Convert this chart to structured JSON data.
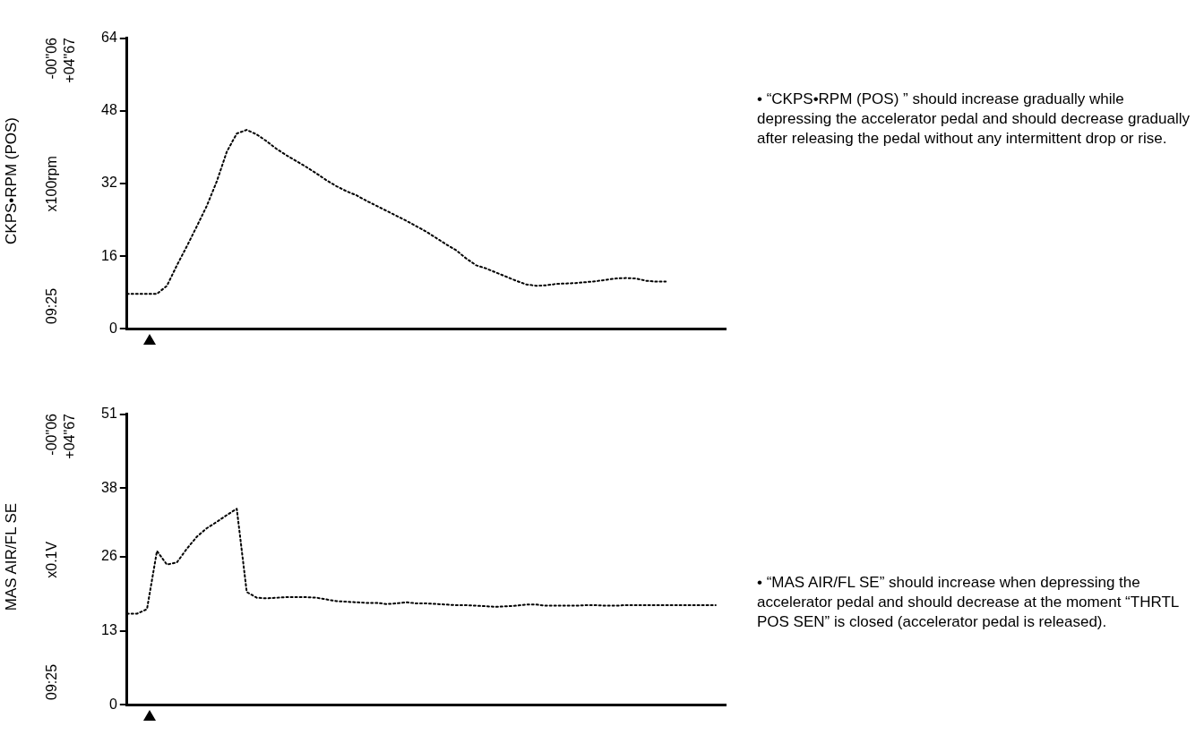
{
  "chart_data": [
    {
      "type": "line",
      "ylabel": "CKPS•RPM (POS)",
      "ylim": [
        0,
        64
      ],
      "yticks": [
        0,
        16,
        32,
        48,
        64
      ],
      "tick_labels": "y",
      "line_style": "dotted",
      "marker": "none",
      "categories": [
        null,
        null,
        null,
        null,
        null,
        null,
        null,
        null,
        null,
        null,
        null,
        null,
        null,
        null,
        null,
        null,
        null,
        null,
        null,
        null,
        null,
        null,
        null,
        null,
        null,
        null,
        null,
        null,
        null,
        null,
        null,
        null,
        null,
        null,
        null,
        null,
        null,
        null,
        null,
        null,
        null,
        null,
        null,
        null,
        null,
        null,
        null,
        null,
        null,
        null,
        null,
        null,
        null,
        null,
        null,
        null,
        null,
        null,
        null,
        null,
        null
      ],
      "series": [
        {
          "color": "#000000",
          "values": [
            7.7,
            7.7,
            7.7,
            7.7,
            9.5,
            14,
            18.2,
            22.6,
            27.1,
            32.5,
            39,
            43,
            43.8,
            42.8,
            41.3,
            39.6,
            38.2,
            36.9,
            35.6,
            34.2,
            32.7,
            31.4,
            30.3,
            29.4,
            28.2,
            27.1,
            26,
            24.9,
            23.8,
            22.6,
            21.4,
            20,
            18.6,
            17.3,
            15.5,
            14,
            13.3,
            12.4,
            11.5,
            10.6,
            9.8,
            9.5,
            9.6,
            9.9,
            10,
            10.1,
            10.3,
            10.5,
            10.8,
            11.1,
            11.2,
            11.1,
            10.6,
            10.4,
            10.4,
            null,
            null,
            null,
            null,
            null,
            null
          ]
        }
      ],
      "annotations": [
        "09:25",
        "-00\"06",
        "+04\"67",
        "x100rpm",
        "• “CKPS•RPM (POS) ” should increase gradually while depressing the accelerator pedal and should decrease gradually after releasing the pedal without any intermittent drop or rise."
      ]
    },
    {
      "type": "line",
      "ylabel": "MAS AIR/FL SE",
      "ylim": [
        0,
        51
      ],
      "yticks": [
        0,
        13,
        26,
        38,
        51
      ],
      "tick_labels": "y",
      "line_style": "dotted",
      "marker": "none",
      "categories": [
        null,
        null,
        null,
        null,
        null,
        null,
        null,
        null,
        null,
        null,
        null,
        null,
        null,
        null,
        null,
        null,
        null,
        null,
        null,
        null,
        null,
        null,
        null,
        null,
        null,
        null,
        null,
        null,
        null,
        null,
        null,
        null,
        null,
        null,
        null,
        null,
        null,
        null,
        null,
        null,
        null,
        null,
        null,
        null,
        null,
        null,
        null,
        null,
        null,
        null,
        null,
        null,
        null,
        null,
        null,
        null,
        null,
        null,
        null,
        null,
        null
      ],
      "series": [
        {
          "color": "#000000",
          "values": [
            16,
            16,
            16.8,
            27,
            24.6,
            25,
            27.4,
            29.5,
            31,
            32.1,
            33.3,
            34.4,
            19.8,
            18.8,
            18.7,
            18.8,
            18.9,
            18.9,
            18.9,
            18.8,
            18.5,
            18.2,
            18.1,
            18,
            17.9,
            17.9,
            17.7,
            17.8,
            18,
            17.8,
            17.8,
            17.7,
            17.6,
            17.5,
            17.5,
            17.4,
            17.3,
            17.2,
            17.3,
            17.4,
            17.6,
            17.6,
            17.4,
            17.4,
            17.4,
            17.4,
            17.5,
            17.5,
            17.4,
            17.4,
            17.5,
            17.5,
            17.5,
            17.5,
            17.5,
            17.5,
            17.5,
            17.5,
            17.5,
            17.5,
            null
          ]
        }
      ],
      "annotations": [
        "09:25",
        "-00\"06",
        "+04\"67",
        "x0.1V",
        "• “MAS AIR/FL SE” should increase when depressing the accelerator pedal and should decrease at the moment “THRTL POS SEN” is closed (accelerator pedal is released)."
      ]
    }
  ]
}
